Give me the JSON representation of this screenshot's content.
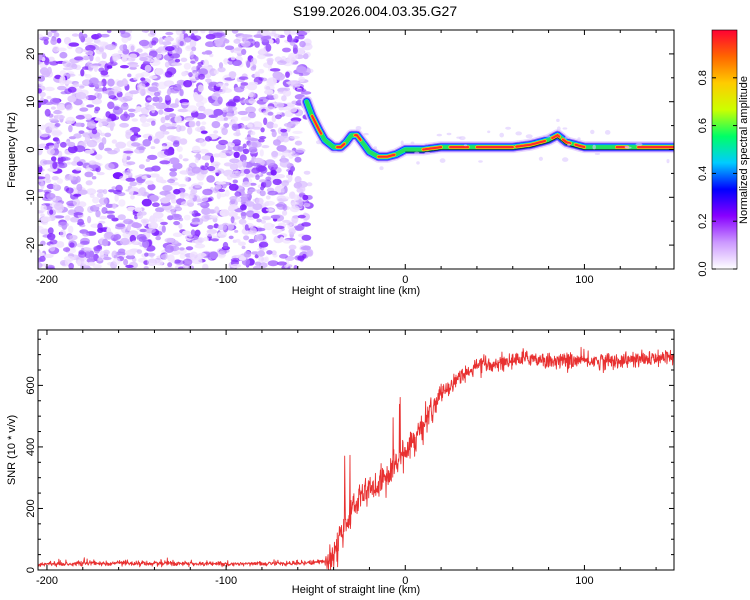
{
  "title": "S199.2026.004.03.35.G27",
  "chart_data": [
    {
      "type": "heatmap",
      "xlabel": "Height of straight line (km)",
      "ylabel": "Frequency (Hz)",
      "xlim": [
        -205,
        150
      ],
      "ylim": [
        -25,
        25
      ],
      "xticks": [
        -200,
        -100,
        0,
        100
      ],
      "xtick_labels": [
        "-200",
        "-100",
        "0",
        "100"
      ],
      "yticks": [
        -20,
        -10,
        0,
        10,
        20
      ],
      "ytick_labels": [
        "-20",
        "-10",
        "0",
        "10",
        "20"
      ],
      "noise_region_x": [
        -205,
        -53
      ],
      "ridge_points": [
        [
          -55,
          10
        ],
        [
          -52,
          7
        ],
        [
          -48,
          4
        ],
        [
          -45,
          2
        ],
        [
          -40,
          0.5
        ],
        [
          -36,
          0.5
        ],
        [
          -33,
          1.5
        ],
        [
          -30,
          3
        ],
        [
          -27,
          3
        ],
        [
          -24,
          1.5
        ],
        [
          -20,
          -0.5
        ],
        [
          -15,
          -1.5
        ],
        [
          -10,
          -1.5
        ],
        [
          -5,
          -1
        ],
        [
          0,
          0
        ],
        [
          10,
          0
        ],
        [
          20,
          0.5
        ],
        [
          40,
          0.5
        ],
        [
          60,
          0.5
        ],
        [
          70,
          1
        ],
        [
          80,
          2
        ],
        [
          85,
          3
        ],
        [
          90,
          1.5
        ],
        [
          100,
          0.5
        ],
        [
          120,
          0.5
        ],
        [
          150,
          0.5
        ]
      ],
      "colorbar": {
        "label": "Normalized spectral amplitude",
        "range": [
          0,
          1
        ],
        "ticks": [
          0.0,
          0.2,
          0.4,
          0.6,
          0.8
        ],
        "tick_labels": [
          "0.0",
          "0.2",
          "0.4",
          "0.6",
          "0.8"
        ],
        "colors": [
          "#ffffff",
          "#cc99ff",
          "#8800ff",
          "#0000ff",
          "#00ccff",
          "#00ff66",
          "#ccff00",
          "#ffcc00",
          "#ff6600",
          "#ff0033"
        ]
      }
    },
    {
      "type": "line",
      "xlabel": "Height of straight line (km)",
      "ylabel": "SNR (10 * v/v)",
      "xlim": [
        -205,
        150
      ],
      "ylim": [
        0,
        780
      ],
      "xticks": [
        -200,
        -100,
        0,
        100
      ],
      "xtick_labels": [
        "-200",
        "-100",
        "0",
        "100"
      ],
      "yticks": [
        0,
        200,
        400,
        600
      ],
      "ytick_labels": [
        "0",
        "200",
        "400",
        "600"
      ],
      "color": "#e83030",
      "trend": [
        [
          -205,
          20
        ],
        [
          -150,
          22
        ],
        [
          -100,
          20
        ],
        [
          -60,
          22
        ],
        [
          -45,
          28
        ],
        [
          -40,
          50
        ],
        [
          -35,
          120
        ],
        [
          -30,
          190
        ],
        [
          -25,
          250
        ],
        [
          -20,
          260
        ],
        [
          -15,
          270
        ],
        [
          -10,
          300
        ],
        [
          -5,
          350
        ],
        [
          0,
          390
        ],
        [
          5,
          430
        ],
        [
          10,
          470
        ],
        [
          15,
          520
        ],
        [
          20,
          570
        ],
        [
          25,
          600
        ],
        [
          30,
          630
        ],
        [
          40,
          660
        ],
        [
          50,
          670
        ],
        [
          60,
          680
        ],
        [
          70,
          690
        ],
        [
          80,
          680
        ],
        [
          100,
          680
        ],
        [
          120,
          680
        ],
        [
          150,
          690
        ]
      ]
    }
  ]
}
